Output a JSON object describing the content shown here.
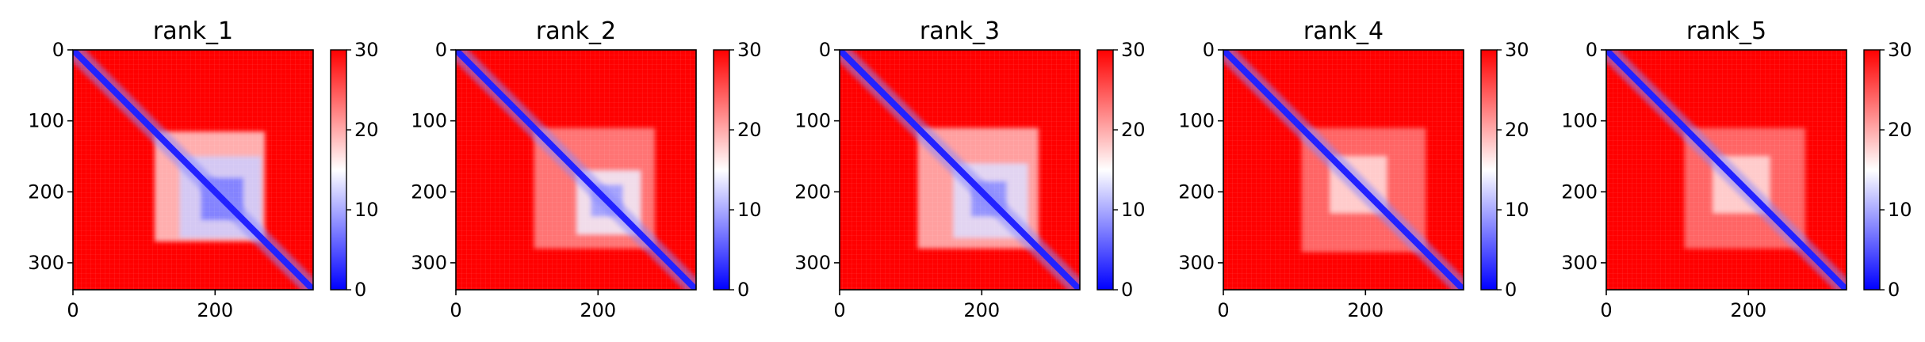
{
  "chart_data": [
    {
      "type": "heatmap",
      "title": "rank_1",
      "xticks": [
        0,
        200
      ],
      "yticks": [
        0,
        100,
        200,
        300
      ],
      "xlim": [
        0,
        338
      ],
      "ylim": [
        338,
        0
      ],
      "colorbar": {
        "ticks": [
          0,
          10,
          20,
          30
        ],
        "range": [
          0,
          30
        ],
        "colormap": "bwr"
      },
      "diagonal_value": 2,
      "blocks": [
        {
          "x": [
            115,
            270
          ],
          "y": [
            115,
            270
          ],
          "value": 18
        },
        {
          "x": [
            150,
            265
          ],
          "y": [
            150,
            265
          ],
          "value": 12
        },
        {
          "x": [
            180,
            240
          ],
          "y": [
            180,
            240
          ],
          "value": 7
        }
      ]
    },
    {
      "type": "heatmap",
      "title": "rank_2",
      "xticks": [
        0,
        200
      ],
      "yticks": [
        0,
        100,
        200,
        300
      ],
      "xlim": [
        0,
        338
      ],
      "ylim": [
        338,
        0
      ],
      "colorbar": {
        "ticks": [
          0,
          10,
          20,
          30
        ],
        "range": [
          0,
          30
        ],
        "colormap": "bwr"
      },
      "diagonal_value": 2,
      "blocks": [
        {
          "x": [
            110,
            280
          ],
          "y": [
            110,
            280
          ],
          "value": 22
        },
        {
          "x": [
            170,
            260
          ],
          "y": [
            170,
            260
          ],
          "value": 14
        },
        {
          "x": [
            190,
            235
          ],
          "y": [
            190,
            235
          ],
          "value": 9
        }
      ]
    },
    {
      "type": "heatmap",
      "title": "rank_3",
      "xticks": [
        0,
        200
      ],
      "yticks": [
        0,
        100,
        200,
        300
      ],
      "xlim": [
        0,
        338
      ],
      "ylim": [
        338,
        0
      ],
      "colorbar": {
        "ticks": [
          0,
          10,
          20,
          30
        ],
        "range": [
          0,
          30
        ],
        "colormap": "bwr"
      },
      "diagonal_value": 2,
      "blocks": [
        {
          "x": [
            110,
            280
          ],
          "y": [
            110,
            280
          ],
          "value": 19
        },
        {
          "x": [
            160,
            265
          ],
          "y": [
            160,
            265
          ],
          "value": 13
        },
        {
          "x": [
            185,
            235
          ],
          "y": [
            185,
            235
          ],
          "value": 8
        }
      ]
    },
    {
      "type": "heatmap",
      "title": "rank_4",
      "xticks": [
        0,
        200
      ],
      "yticks": [
        0,
        100,
        200,
        300
      ],
      "xlim": [
        0,
        338
      ],
      "ylim": [
        338,
        0
      ],
      "colorbar": {
        "ticks": [
          0,
          10,
          20,
          30
        ],
        "range": [
          0,
          30
        ],
        "colormap": "bwr"
      },
      "diagonal_value": 2,
      "blocks": [
        {
          "x": [
            110,
            285
          ],
          "y": [
            110,
            285
          ],
          "value": 23
        },
        {
          "x": [
            150,
            230
          ],
          "y": [
            150,
            230
          ],
          "value": 17
        }
      ]
    },
    {
      "type": "heatmap",
      "title": "rank_5",
      "xticks": [
        0,
        200
      ],
      "yticks": [
        0,
        100,
        200,
        300
      ],
      "xlim": [
        0,
        338
      ],
      "ylim": [
        338,
        0
      ],
      "colorbar": {
        "ticks": [
          0,
          10,
          20,
          30
        ],
        "range": [
          0,
          30
        ],
        "colormap": "bwr"
      },
      "diagonal_value": 2,
      "blocks": [
        {
          "x": [
            110,
            280
          ],
          "y": [
            110,
            280
          ],
          "value": 23
        },
        {
          "x": [
            150,
            230
          ],
          "y": [
            150,
            230
          ],
          "value": 17
        }
      ]
    }
  ]
}
